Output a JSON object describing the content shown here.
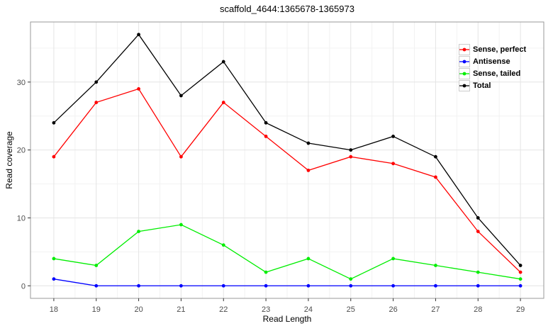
{
  "chart_data": {
    "type": "line",
    "title": "scaffold_4644:1365678-1365973",
    "xlabel": "Read Length",
    "ylabel": "Read coverage",
    "x": [
      18,
      19,
      20,
      21,
      22,
      23,
      24,
      25,
      26,
      27,
      28,
      29
    ],
    "series": [
      {
        "name": "Sense, perfect",
        "color": "#FF0000",
        "values": [
          19,
          27,
          29,
          19,
          27,
          22,
          17,
          19,
          18,
          16,
          8,
          2
        ]
      },
      {
        "name": "Antisense",
        "color": "#0000FF",
        "values": [
          1,
          0,
          0,
          0,
          0,
          0,
          0,
          0,
          0,
          0,
          0,
          0
        ]
      },
      {
        "name": "Sense, tailed",
        "color": "#00EE00",
        "values": [
          4,
          3,
          8,
          9,
          6,
          2,
          4,
          1,
          4,
          3,
          2,
          1
        ]
      },
      {
        "name": "Total",
        "color": "#000000",
        "values": [
          24,
          30,
          37,
          28,
          33,
          24,
          21,
          20,
          22,
          19,
          10,
          3
        ]
      }
    ],
    "xticks": [
      18,
      19,
      20,
      21,
      22,
      23,
      24,
      25,
      26,
      27,
      28,
      29
    ],
    "yticks": [
      0,
      10,
      20,
      30
    ],
    "yticks_minor": [
      5,
      15,
      25,
      35
    ],
    "xlim": [
      18,
      29
    ],
    "ylim": [
      0,
      37
    ],
    "grid": {
      "major": true,
      "minor": true
    },
    "legend_position": "top-right-inside",
    "style": {
      "background": "#FFFFFF",
      "panel_background": "#FFFFFF",
      "panel_border": "#999999",
      "grid_major_color": "#E4E4E4",
      "grid_minor_color": "#F2F2F2",
      "tick_color": "#333333",
      "axis_text_color": "#4D4D4D",
      "title_color": "#000000",
      "legend_key_border": "#CCCCCC"
    }
  }
}
